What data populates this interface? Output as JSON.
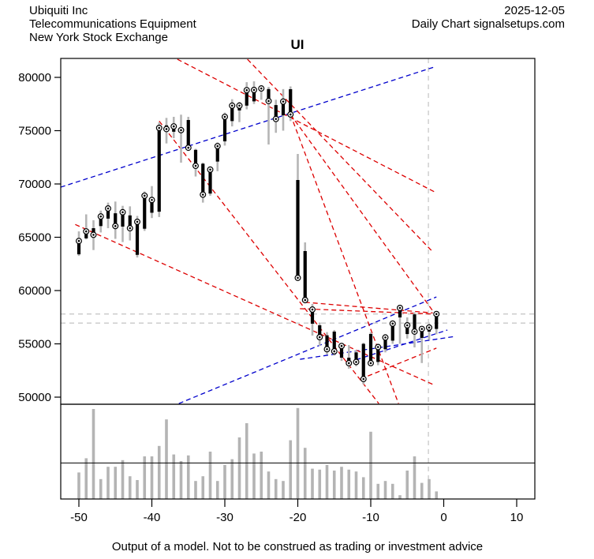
{
  "header": {
    "company": "Ubiquiti Inc",
    "industry": "Telecommunications Equipment",
    "exchange": "New York Stock Exchange",
    "date": "2025-12-05",
    "chart_source": "Daily Chart signalsetups.com"
  },
  "title": "UI",
  "footer": {
    "disclaimer": "Output of a model. Not to be construed as trading or investment advice"
  },
  "chart_data": {
    "type": "ohlc-with-volume",
    "title": "UI",
    "xlabel": "",
    "ylabel": "",
    "x_ticks": [
      -50,
      -40,
      -30,
      -20,
      -10,
      0,
      10
    ],
    "y_ticks": [
      50000,
      55000,
      60000,
      65000,
      70000,
      75000,
      80000
    ],
    "x_range": [
      -53,
      12.5
    ],
    "y_range": [
      48500,
      81800
    ],
    "bar_columns": [
      "x",
      "open",
      "high",
      "low",
      "close"
    ],
    "bars": [
      [
        -50,
        63400,
        65550,
        63250,
        64650
      ],
      [
        -49,
        64900,
        67150,
        64800,
        65550
      ],
      [
        -48,
        65850,
        66600,
        63800,
        65230
      ],
      [
        -47,
        66050,
        67500,
        65450,
        66950
      ],
      [
        -46,
        66750,
        68250,
        65850,
        67700
      ],
      [
        -45,
        67250,
        68350,
        64850,
        66050
      ],
      [
        -44,
        66000,
        67950,
        64550,
        67350
      ],
      [
        -43,
        67050,
        67900,
        64700,
        65850
      ],
      [
        -42,
        63350,
        67000,
        63100,
        66450
      ],
      [
        -41,
        65800,
        69300,
        65600,
        68900
      ],
      [
        -40,
        67300,
        69800,
        66800,
        68500
      ],
      [
        -39,
        67400,
        75780,
        66900,
        75260
      ],
      [
        -38,
        75500,
        76200,
        73800,
        75150
      ],
      [
        -37,
        74900,
        76300,
        74300,
        75400
      ],
      [
        -36,
        75300,
        76500,
        72000,
        75050
      ],
      [
        -35,
        76000,
        76300,
        73100,
        73400
      ],
      [
        -34,
        73200,
        73300,
        70700,
        71700
      ],
      [
        -33,
        71900,
        72000,
        68250,
        69000
      ],
      [
        -32,
        69100,
        71600,
        68900,
        71350
      ],
      [
        -31,
        72100,
        73900,
        71200,
        73550
      ],
      [
        -30,
        74000,
        76700,
        73600,
        76300
      ],
      [
        -29,
        75900,
        77950,
        75400,
        77350
      ],
      [
        -28,
        76900,
        77700,
        75800,
        77350
      ],
      [
        -27,
        77350,
        79550,
        77000,
        78800
      ],
      [
        -26,
        77750,
        79630,
        77500,
        78820
      ],
      [
        -25,
        78850,
        79200,
        77900,
        78960
      ],
      [
        -24,
        78900,
        79100,
        73700,
        77780
      ],
      [
        -23,
        77400,
        77900,
        74800,
        76100
      ],
      [
        -22,
        76440,
        78900,
        75000,
        77730
      ],
      [
        -21,
        78890,
        79150,
        75900,
        76520
      ],
      [
        -20,
        70370,
        72815,
        60900,
        61190
      ],
      [
        -19,
        63700,
        64520,
        58800,
        59110
      ],
      [
        -18,
        56890,
        58740,
        55780,
        58220
      ],
      [
        -17,
        56740,
        57000,
        54820,
        55630
      ],
      [
        -16,
        55800,
        56100,
        54000,
        54500
      ],
      [
        -15,
        56150,
        56300,
        53900,
        54300
      ],
      [
        -14,
        53700,
        55100,
        53400,
        54800
      ],
      [
        -13,
        53700,
        54890,
        52670,
        53190
      ],
      [
        -12,
        54200,
        54400,
        52900,
        53300
      ],
      [
        -11,
        55000,
        55100,
        51200,
        51700
      ],
      [
        -10,
        55930,
        56100,
        52900,
        53190
      ],
      [
        -9,
        53300,
        55000,
        53000,
        54700
      ],
      [
        -8,
        54500,
        55900,
        54200,
        55600
      ],
      [
        -7,
        55300,
        57200,
        55000,
        56900
      ],
      [
        -6,
        57480,
        58500,
        55000,
        58370
      ],
      [
        -5,
        55920,
        57480,
        55500,
        56740
      ],
      [
        -4,
        57770,
        57950,
        54670,
        56150
      ],
      [
        -3,
        55560,
        56500,
        53200,
        56400
      ],
      [
        -2,
        56150,
        56900,
        55400,
        56530
      ],
      [
        -1,
        56400,
        57950,
        55900,
        57800
      ]
    ],
    "volume_relative": [
      28,
      43,
      95,
      21,
      34,
      34,
      41,
      24,
      20,
      45,
      45,
      56,
      84,
      47,
      40,
      46,
      19,
      24,
      50,
      19,
      36,
      42,
      65,
      80,
      48,
      50,
      29,
      21,
      19,
      62,
      96,
      54,
      32,
      31,
      36,
      30,
      34,
      31,
      29,
      23,
      71,
      16,
      19,
      16,
      4,
      30,
      45,
      17,
      21,
      8
    ],
    "volume_mean_level": 38,
    "levels": {
      "horizontal_dashed_prices": [
        57800,
        56950
      ],
      "vertical_dashed_x": -2.1
    },
    "trendlines": {
      "blue": [
        [
          -52.5,
          69700,
          -1.4,
          80950
        ],
        [
          -36.3,
          49400,
          -1.0,
          59400
        ],
        [
          -19.7,
          53550,
          1.6,
          55700
        ],
        [
          -12.0,
          53500,
          0.5,
          56300
        ]
      ],
      "red": [
        [
          -36.5,
          81700,
          -1.1,
          69200
        ],
        [
          -26.9,
          81700,
          -1.6,
          63700
        ],
        [
          -21.0,
          76520,
          -1.4,
          58000
        ],
        [
          -21.0,
          76520,
          -6.2,
          49400
        ],
        [
          -50.5,
          66200,
          -1.5,
          51200
        ],
        [
          -19.0,
          58900,
          -1.5,
          57900
        ],
        [
          -19.7,
          58300,
          -1.5,
          57800
        ],
        [
          -11.4,
          51700,
          -1.0,
          54600
        ],
        [
          -39.0,
          75900,
          -8.9,
          49400
        ]
      ]
    },
    "colors": {
      "red_line": "#dd0000",
      "blue_line": "#0000cc",
      "wick": "#b5b5b5",
      "body": "#000000",
      "volume_bar": "#b4b4b4",
      "dashed_gray": "#c8c8c8",
      "axis": "#000000",
      "text": "#000000"
    },
    "legend": "none",
    "grid": "off"
  }
}
